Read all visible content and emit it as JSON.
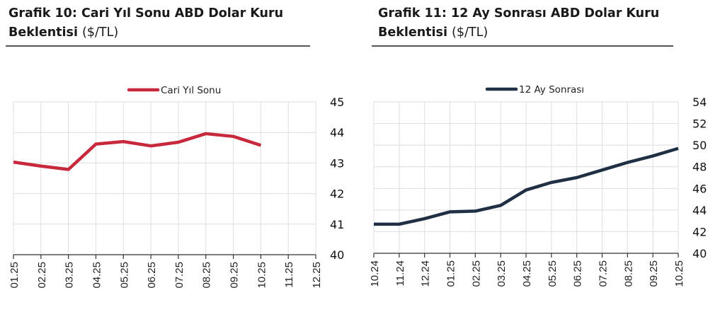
{
  "charts": [
    {
      "title_bold": "Grafik 10: Cari Yıl Sonu ABD Dolar Kuru",
      "title_bold_line2": "Beklentisi",
      "title_unit": "($/TL)"
    },
    {
      "title_bold": "Grafik 11: 12 Ay Sonrası ABD Dolar Kuru",
      "title_bold_line2": "Beklentisi",
      "title_unit": "($/TL)"
    }
  ],
  "colors": {
    "series1": "#c8283c",
    "series2": "#1f3044",
    "grid": "#dedede",
    "axis": "#333333"
  },
  "chart_data": [
    {
      "type": "line",
      "title": "Grafik 10: Cari Yıl Sonu ABD Dolar Kuru Beklentisi ($/TL)",
      "categories": [
        "01.25",
        "02.25",
        "03.25",
        "04.25",
        "05.25",
        "06.25",
        "07.25",
        "08.25",
        "09.25",
        "10.25",
        "11.25",
        "12.25"
      ],
      "series": [
        {
          "name": "Cari Yıl Sonu",
          "values": [
            43.03,
            42.9,
            42.79,
            43.62,
            43.7,
            43.56,
            43.68,
            43.96,
            43.87,
            43.58,
            null,
            null
          ]
        }
      ],
      "xlabel": "",
      "ylabel": "",
      "ylim": [
        40,
        45
      ],
      "yticks": [
        40,
        41,
        42,
        43,
        44,
        45
      ],
      "y_axis_position": "right",
      "grid": true,
      "legend_position": "top"
    },
    {
      "type": "line",
      "title": "Grafik 11: 12 Ay Sonrası ABD Dolar Kuru Beklentisi ($/TL)",
      "categories": [
        "10.24",
        "11.24",
        "12.24",
        "01.25",
        "02.25",
        "03.25",
        "04.25",
        "05.25",
        "06.25",
        "07.25",
        "08.25",
        "09.25",
        "10.25"
      ],
      "series": [
        {
          "name": "12 Ay Sonrası",
          "values": [
            42.69,
            42.69,
            43.2,
            43.83,
            43.9,
            44.43,
            45.85,
            46.55,
            47.0,
            47.7,
            48.4,
            49.0,
            49.7
          ]
        }
      ],
      "xlabel": "",
      "ylabel": "",
      "ylim": [
        40,
        54
      ],
      "yticks": [
        40,
        42,
        44,
        46,
        48,
        50,
        52,
        54
      ],
      "y_axis_position": "right",
      "grid": true,
      "legend_position": "top"
    }
  ]
}
